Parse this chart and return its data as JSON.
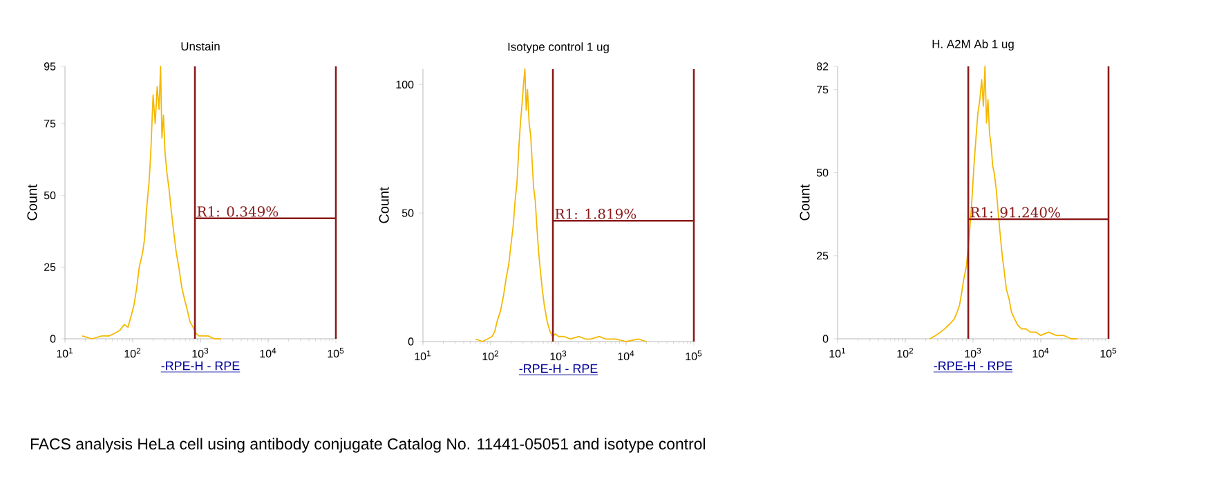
{
  "chart_data": [
    {
      "type": "line",
      "title": "Unstain",
      "xlabel": "-RPE-H - RPE",
      "ylabel": "Count",
      "log": "x",
      "xlim": [
        10,
        100000
      ],
      "ylim": [
        0,
        95
      ],
      "xticks": [
        {
          "value": 10,
          "label": "10$^{1}$"
        },
        {
          "value": 100,
          "label": "10$^{2}$"
        },
        {
          "value": 1000,
          "label": "10$^{3}$"
        },
        {
          "value": 10000,
          "label": "10$^{4}$"
        },
        {
          "value": 100000,
          "label": "10$^{5}$"
        }
      ],
      "yticks": [
        0,
        25,
        50,
        75,
        95
      ],
      "series": [
        {
          "color": "#f5b800",
          "x": [
            18,
            25,
            35,
            45,
            55,
            65,
            75,
            85,
            95,
            105,
            115,
            125,
            140,
            150,
            160,
            175,
            185,
            200,
            215,
            230,
            245,
            258,
            270,
            285,
            300,
            320,
            345,
            370,
            400,
            440,
            480,
            530,
            580,
            640,
            700,
            780,
            850,
            950,
            1100,
            1300,
            1600,
            2000
          ],
          "values": [
            1,
            0,
            1,
            1,
            2,
            3,
            5,
            4,
            8,
            12,
            18,
            25,
            30,
            35,
            45,
            55,
            65,
            85,
            75,
            88,
            80,
            95,
            70,
            78,
            65,
            58,
            52,
            45,
            38,
            30,
            25,
            18,
            14,
            10,
            6,
            4,
            2,
            1,
            1,
            1,
            0,
            0
          ]
        },
        {
          "name": "R1: 0.349%",
          "color": "#8b1a1a",
          "x": [
            830,
            100000
          ],
          "values": [
            42,
            42
          ]
        }
      ],
      "ref_lines": [
        {
          "axis": "x",
          "value": 830,
          "color": "#8b1a1a"
        },
        {
          "axis": "x",
          "value": 100000,
          "color": "#8b1a1a"
        }
      ],
      "annotations": [
        "FACS analysis HeLa cell using antibody conjugate Catalog No. 11441-05051 and isotype control"
      ]
    },
    {
      "type": "line",
      "title": "Isotype control 1 ug",
      "xlabel": "-RPE-H - RPE",
      "ylabel": "Count",
      "log": "x",
      "xlim": [
        10,
        100000
      ],
      "ylim": [
        0,
        106
      ],
      "xticks": [
        {
          "value": 10,
          "label": "10$^{1}$"
        },
        {
          "value": 100,
          "label": "10$^{2}$"
        },
        {
          "value": 1000,
          "label": "10$^{3}$"
        },
        {
          "value": 10000,
          "label": "10$^{4}$"
        },
        {
          "value": 100000,
          "label": "10$^{5}$"
        }
      ],
      "yticks": [
        0,
        50,
        100
      ],
      "series": [
        {
          "color": "#f5b800",
          "x": [
            60,
            75,
            90,
            105,
            115,
            125,
            140,
            155,
            170,
            185,
            200,
            215,
            230,
            245,
            260,
            275,
            290,
            305,
            320,
            335,
            350,
            370,
            390,
            410,
            430,
            455,
            480,
            510,
            540,
            580,
            620,
            680,
            750,
            820,
            900,
            1000,
            1200,
            1500,
            2000,
            2500,
            3000,
            4000,
            5000,
            7000,
            10000,
            15000,
            20000
          ],
          "values": [
            1,
            0,
            1,
            2,
            4,
            8,
            12,
            18,
            25,
            30,
            38,
            45,
            55,
            62,
            75,
            85,
            92,
            100,
            106,
            90,
            98,
            85,
            80,
            70,
            60,
            55,
            45,
            35,
            28,
            20,
            14,
            8,
            4,
            2,
            3,
            2,
            2,
            1,
            2,
            1,
            1,
            2,
            1,
            1,
            0,
            1,
            0
          ]
        },
        {
          "name": "R1: 1.819%",
          "color": "#8b1a1a",
          "x": [
            830,
            100000
          ],
          "values": [
            47,
            47
          ]
        }
      ],
      "ref_lines": [
        {
          "axis": "x",
          "value": 830,
          "color": "#8b1a1a"
        },
        {
          "axis": "x",
          "value": 100000,
          "color": "#8b1a1a"
        }
      ]
    },
    {
      "type": "line",
      "title": "H. A2M Ab 1 ug",
      "xlabel": "-RPE-H - RPE",
      "ylabel": "Count",
      "log": "x",
      "xlim": [
        10,
        100000
      ],
      "ylim": [
        0,
        82
      ],
      "xticks": [
        {
          "value": 10,
          "label": "10$^{1}$"
        },
        {
          "value": 100,
          "label": "10$^{2}$"
        },
        {
          "value": 1000,
          "label": "10$^{3}$"
        },
        {
          "value": 10000,
          "label": "10$^{4}$"
        },
        {
          "value": 100000,
          "label": "10$^{5}$"
        }
      ],
      "yticks": [
        0,
        25,
        50,
        75,
        82
      ],
      "series": [
        {
          "color": "#f5b800",
          "x": [
            230,
            280,
            330,
            380,
            430,
            480,
            530,
            580,
            630,
            680,
            730,
            800,
            870,
            950,
            1030,
            1100,
            1180,
            1260,
            1340,
            1420,
            1500,
            1580,
            1660,
            1750,
            1850,
            1950,
            2050,
            2200,
            2350,
            2500,
            2700,
            2900,
            3100,
            3400,
            3700,
            4100,
            4600,
            5200,
            6000,
            7000,
            8500,
            10000,
            13000,
            17000,
            22000,
            28000,
            35000
          ],
          "values": [
            0,
            1,
            2,
            3,
            4,
            5,
            6,
            8,
            10,
            14,
            18,
            22,
            30,
            40,
            52,
            60,
            68,
            72,
            78,
            70,
            82,
            65,
            72,
            62,
            58,
            52,
            50,
            45,
            38,
            32,
            25,
            20,
            15,
            12,
            8,
            6,
            4,
            3,
            3,
            2,
            2,
            1,
            2,
            1,
            1,
            0,
            0
          ]
        },
        {
          "name": "R1: 91.240%",
          "color": "#8b1a1a",
          "x": [
            850,
            100000
          ],
          "values": [
            36,
            36
          ]
        }
      ],
      "ref_lines": [
        {
          "axis": "x",
          "value": 850,
          "color": "#8b1a1a"
        },
        {
          "axis": "x",
          "value": 100000,
          "color": "#8b1a1a"
        }
      ]
    }
  ]
}
